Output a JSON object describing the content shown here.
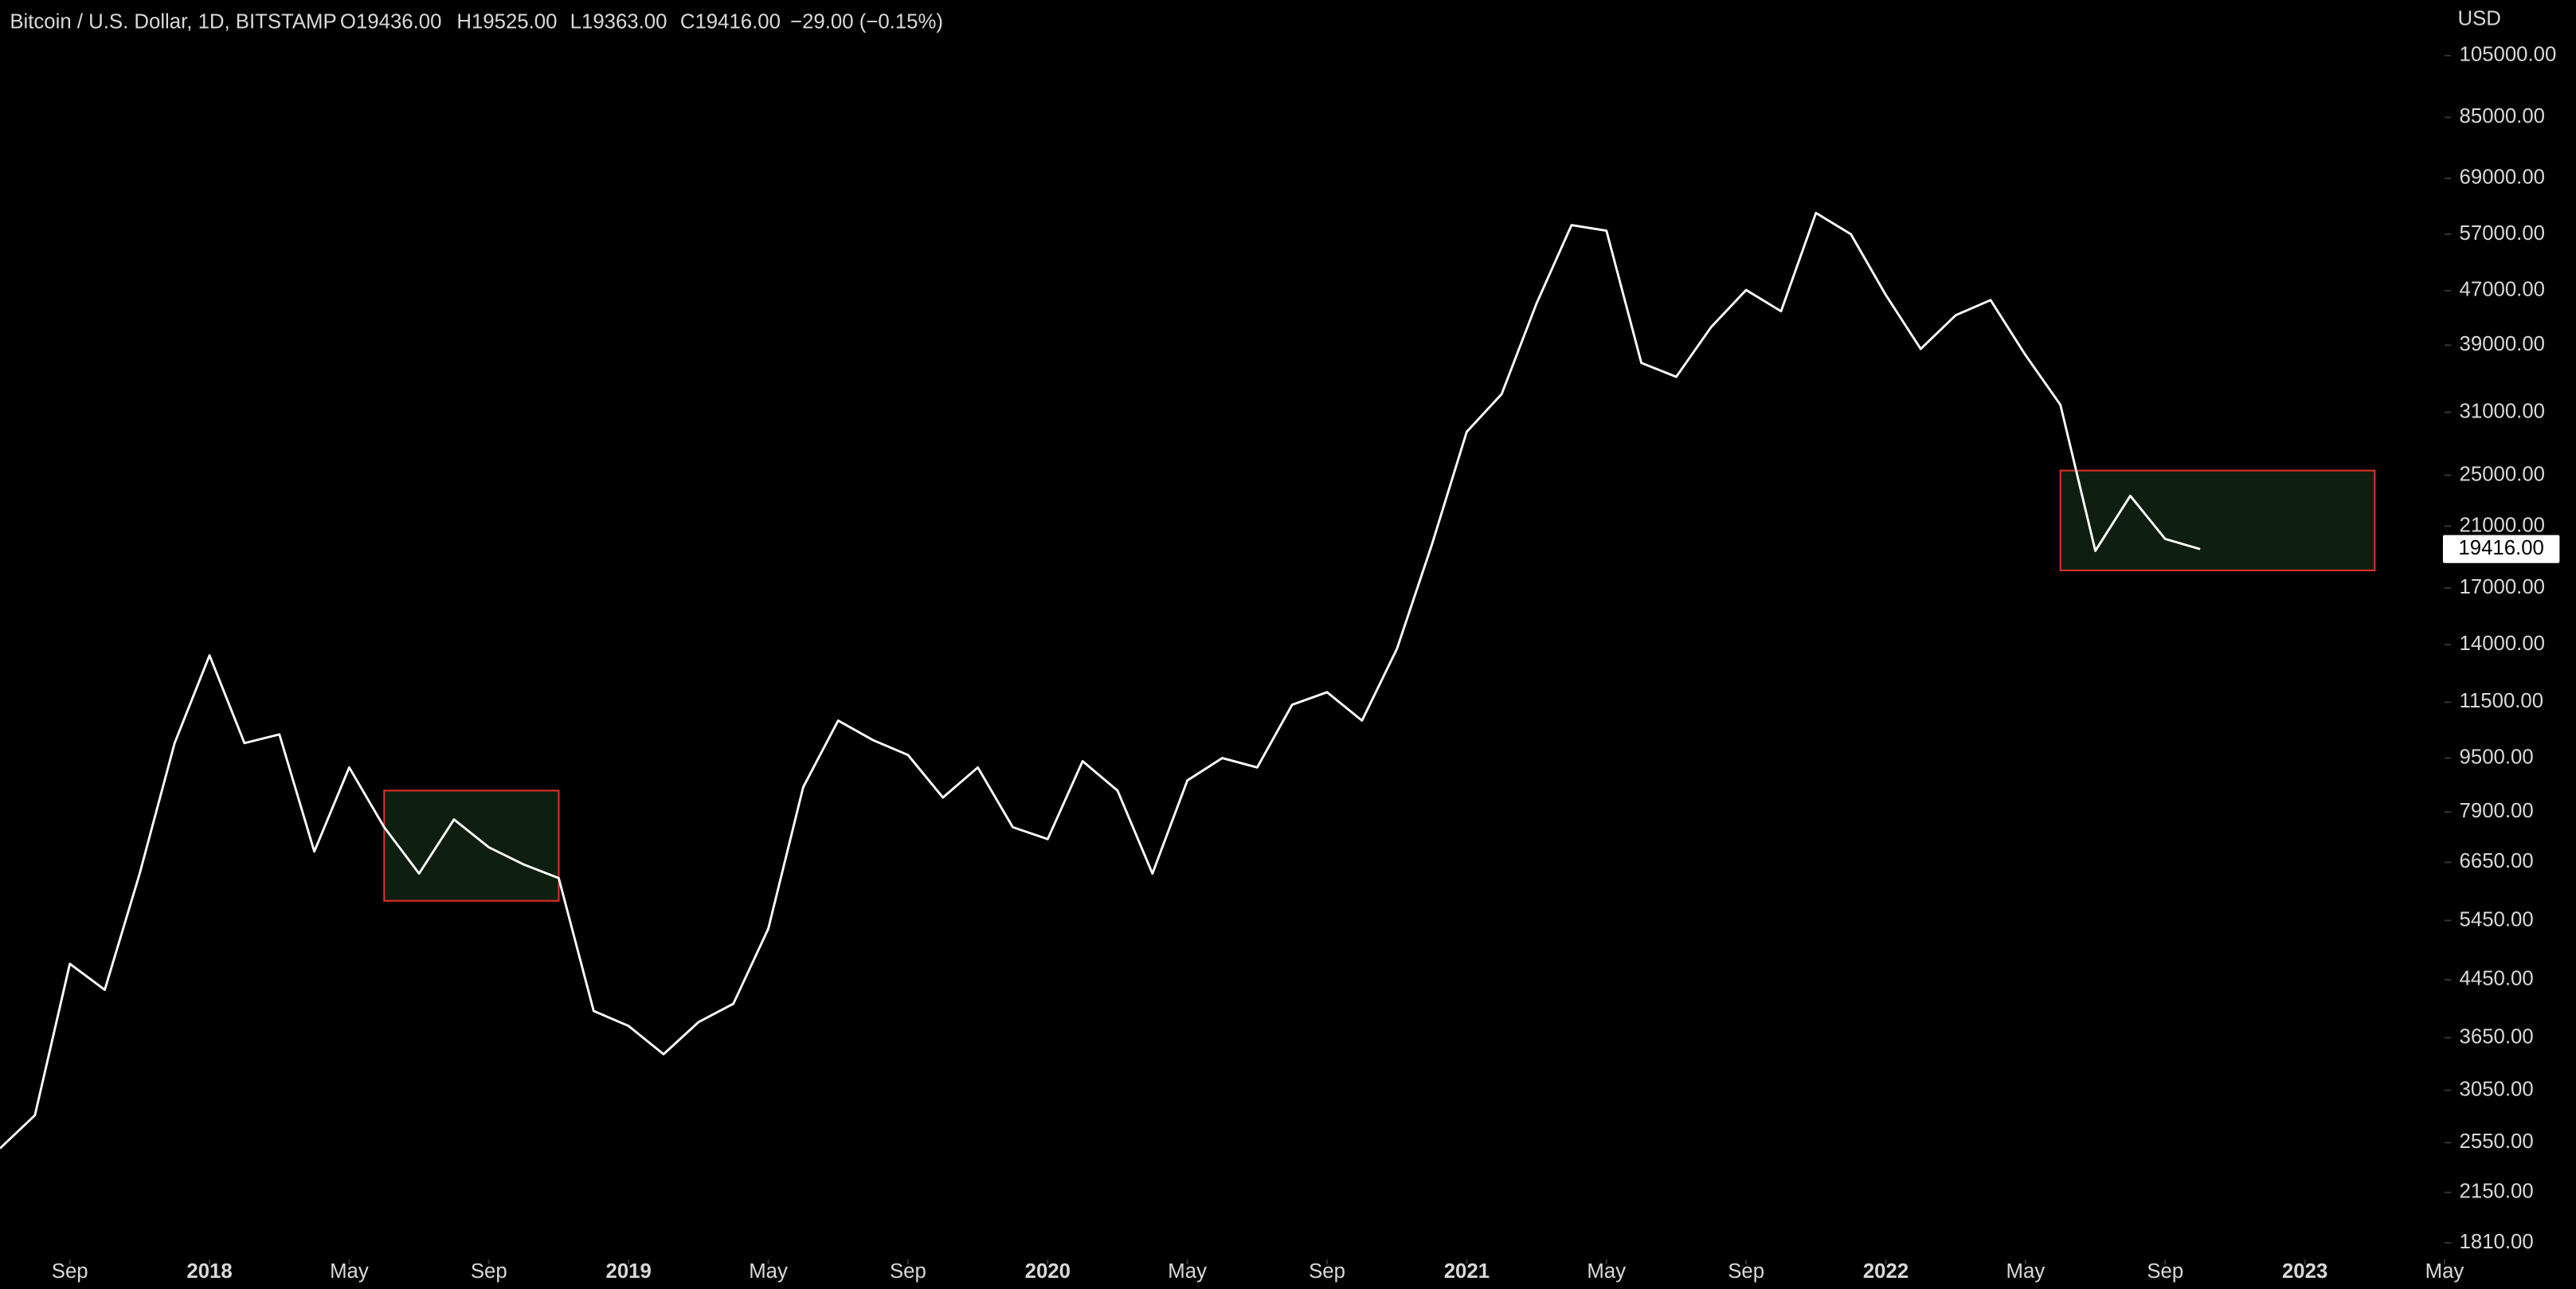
{
  "chart_data": {
    "type": "line",
    "header": {
      "symbol": "Bitcoin / U.S. Dollar, 1D, BITSTAMP",
      "open": "O19436.00",
      "high": "H19525.00",
      "low": "L19363.00",
      "close": "C19416.00",
      "change": "−29.00 (−0.15%)"
    },
    "y_unit": "USD",
    "log_scale": true,
    "xlim": [
      "2017-07",
      "2023-05"
    ],
    "ylim": [
      1710,
      127000
    ],
    "xticks": [
      {
        "value": "2017-09",
        "label": "Sep"
      },
      {
        "value": "2018-01",
        "label": "2018"
      },
      {
        "value": "2018-05",
        "label": "May"
      },
      {
        "value": "2018-09",
        "label": "Sep"
      },
      {
        "value": "2019-01",
        "label": "2019"
      },
      {
        "value": "2019-05",
        "label": "May"
      },
      {
        "value": "2019-09",
        "label": "Sep"
      },
      {
        "value": "2020-01",
        "label": "2020"
      },
      {
        "value": "2020-05",
        "label": "May"
      },
      {
        "value": "2020-09",
        "label": "Sep"
      },
      {
        "value": "2021-01",
        "label": "2021"
      },
      {
        "value": "2021-05",
        "label": "May"
      },
      {
        "value": "2021-09",
        "label": "Sep"
      },
      {
        "value": "2022-01",
        "label": "2022"
      },
      {
        "value": "2022-05",
        "label": "May"
      },
      {
        "value": "2022-09",
        "label": "Sep"
      },
      {
        "value": "2023-01",
        "label": "2023"
      },
      {
        "value": "2023-05",
        "label": "May"
      }
    ],
    "yticks": [
      {
        "value": 105000,
        "label": "105000.00"
      },
      {
        "value": 85000,
        "label": "85000.00"
      },
      {
        "value": 69000,
        "label": "69000.00"
      },
      {
        "value": 57000,
        "label": "57000.00"
      },
      {
        "value": 47000,
        "label": "47000.00"
      },
      {
        "value": 39000,
        "label": "39000.00"
      },
      {
        "value": 31000,
        "label": "31000.00"
      },
      {
        "value": 25000,
        "label": "25000.00"
      },
      {
        "value": 21000,
        "label": "21000.00"
      },
      {
        "value": 17000,
        "label": "17000.00"
      },
      {
        "value": 14000,
        "label": "14000.00"
      },
      {
        "value": 11500,
        "label": "11500.00"
      },
      {
        "value": 9500,
        "label": "9500.00"
      },
      {
        "value": 7900,
        "label": "7900.00"
      },
      {
        "value": 6650,
        "label": "6650.00"
      },
      {
        "value": 5450,
        "label": "5450.00"
      },
      {
        "value": 4450,
        "label": "4450.00"
      },
      {
        "value": 3650,
        "label": "3650.00"
      },
      {
        "value": 3050,
        "label": "3050.00"
      },
      {
        "value": 2550,
        "label": "2550.00"
      },
      {
        "value": 2150,
        "label": "2150.00"
      },
      {
        "value": 1810,
        "label": "1810.00"
      }
    ],
    "x": [
      "2017-07",
      "2017-08",
      "2017-09",
      "2017-10",
      "2017-11",
      "2017-12",
      "2018-01",
      "2018-02",
      "2018-03",
      "2018-04",
      "2018-05",
      "2018-06",
      "2018-07",
      "2018-08",
      "2018-09",
      "2018-10",
      "2018-11",
      "2018-12",
      "2019-01",
      "2019-02",
      "2019-03",
      "2019-04",
      "2019-05",
      "2019-06",
      "2019-07",
      "2019-08",
      "2019-09",
      "2019-10",
      "2019-11",
      "2019-12",
      "2020-01",
      "2020-02",
      "2020-03",
      "2020-04",
      "2020-05",
      "2020-06",
      "2020-07",
      "2020-08",
      "2020-09",
      "2020-10",
      "2020-11",
      "2020-12",
      "2021-01",
      "2021-02",
      "2021-03",
      "2021-04",
      "2021-05",
      "2021-06",
      "2021-07",
      "2021-08",
      "2021-09",
      "2021-10",
      "2021-11",
      "2021-12",
      "2022-01",
      "2022-02",
      "2022-03",
      "2022-04",
      "2022-05",
      "2022-06",
      "2022-07",
      "2022-08",
      "2022-09",
      "2022-10"
    ],
    "series": [
      {
        "name": "BTCUSD",
        "color": "#ffffff",
        "values": [
          2500,
          2800,
          4700,
          4300,
          6400,
          10000,
          13500,
          10000,
          10300,
          6900,
          9200,
          7500,
          6400,
          7700,
          7000,
          6600,
          6300,
          4000,
          3800,
          3450,
          3850,
          4100,
          5300,
          8600,
          10800,
          10100,
          9600,
          8300,
          9200,
          7500,
          7200,
          9400,
          8500,
          6400,
          8800,
          9500,
          9200,
          11400,
          11900,
          10800,
          13800,
          19700,
          29000,
          33000,
          45000,
          58800,
          57700,
          36700,
          35000,
          41500,
          47100,
          43800,
          61300,
          57000,
          46300,
          38500,
          43200,
          45500,
          37700,
          31800,
          19300,
          23300,
          20100,
          19416
        ]
      }
    ],
    "last_price": {
      "value": 19416,
      "label": "19416.00"
    },
    "zones": [
      {
        "x": [
          "2018-06",
          "2018-11"
        ],
        "y": [
          5830,
          8500
        ],
        "color": "#0f1f0f",
        "border": "#e0302a"
      },
      {
        "x": [
          "2022-06",
          "2023-03"
        ],
        "y": [
          18050,
          25400
        ],
        "color": "#0f1f0f",
        "border": "#e0302a"
      }
    ]
  }
}
